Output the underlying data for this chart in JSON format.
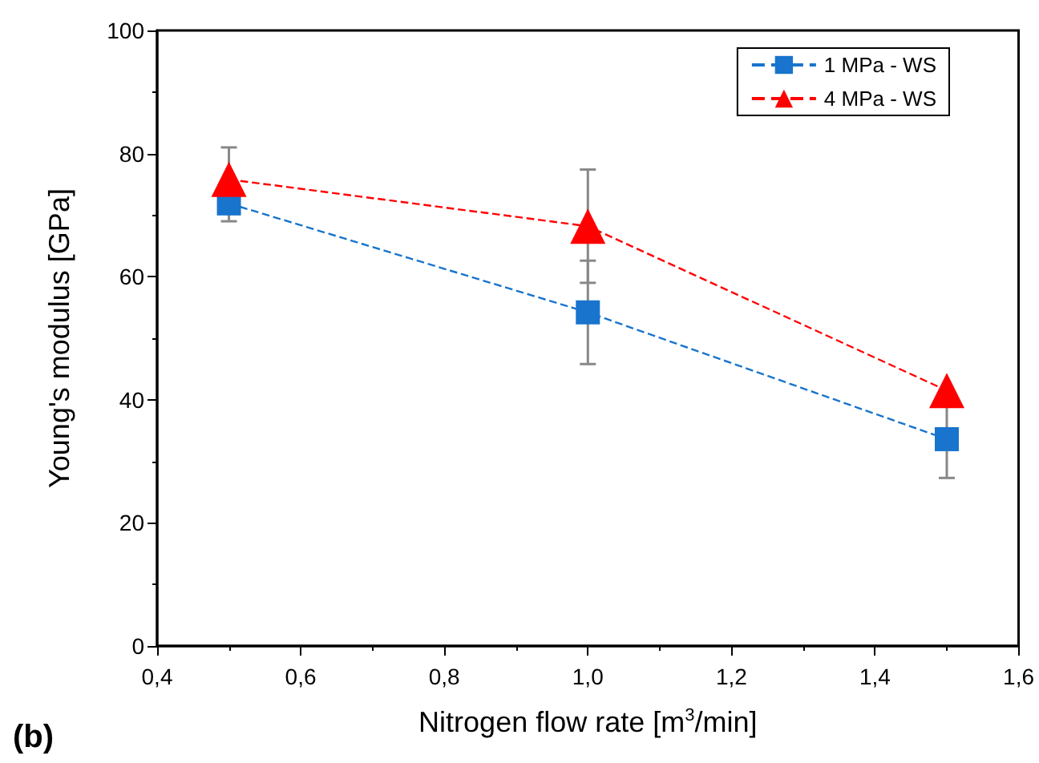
{
  "chart_data": {
    "type": "line",
    "xlabel": "Nitrogen flow rate [m$^{3}$/min]",
    "ylabel": "Young's modulus [GPa]",
    "annotations": [
      "(b)"
    ],
    "x": [
      0.5,
      1.0,
      1.5
    ],
    "series": [
      {
        "name": "1 MPa - WS",
        "color": "#1874cd",
        "marker": "square",
        "values": [
          71.9,
          54.2,
          33.6
        ],
        "errors": [
          2.9,
          8.4,
          6.3
        ]
      },
      {
        "name": "4 MPa - WS",
        "color": "#ff0000",
        "marker": "triangle",
        "values": [
          75.8,
          68.2,
          41.5
        ],
        "errors": [
          5.2,
          9.2,
          null
        ]
      }
    ],
    "line_style": "dashed",
    "xlim": [
      0.4,
      1.6
    ],
    "xticks": [
      {
        "value": 0.4,
        "label": "0,4"
      },
      {
        "value": 0.6,
        "label": "0,6"
      },
      {
        "value": 0.8,
        "label": "0,8"
      },
      {
        "value": 1.0,
        "label": "1,0"
      },
      {
        "value": 1.2,
        "label": "1,2"
      },
      {
        "value": 1.4,
        "label": "1,4"
      },
      {
        "value": 1.6,
        "label": "1,6"
      }
    ],
    "ylim": [
      0,
      100
    ],
    "yticks": [
      0,
      20,
      40,
      60,
      80,
      100
    ],
    "grid": false,
    "legend": "top right"
  }
}
